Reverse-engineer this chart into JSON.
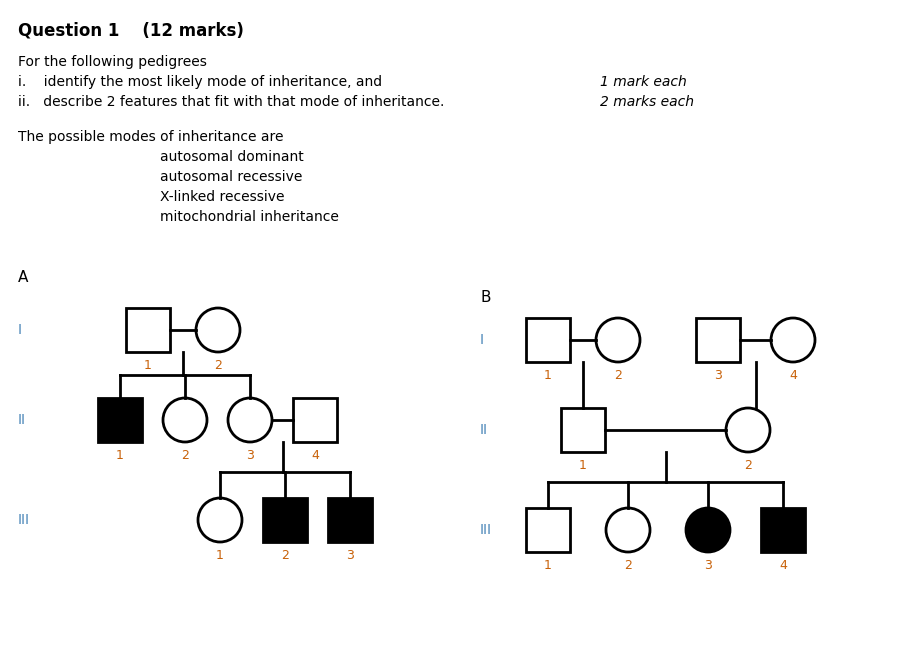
{
  "title_text": "Question 1    (12 marks)",
  "body_line0": "For the following pedigrees",
  "body_line1_i": "i.    identify the most likely mode of inheritance, and",
  "body_line1_ii": "ii.   describe 2 features that fit with that mode of inheritance.",
  "right_text_1": "1 mark each",
  "right_text_2": "2 marks each",
  "modes_header": "The possible modes of inheritance are",
  "modes": [
    "autosomal dominant",
    "autosomal recessive",
    "X-linked recessive",
    "mitochondrial inheritance"
  ],
  "label_color": "#c8620a",
  "roman_color": "#4a86b8",
  "bg_color": "#ffffff",
  "text_color": "#000000"
}
